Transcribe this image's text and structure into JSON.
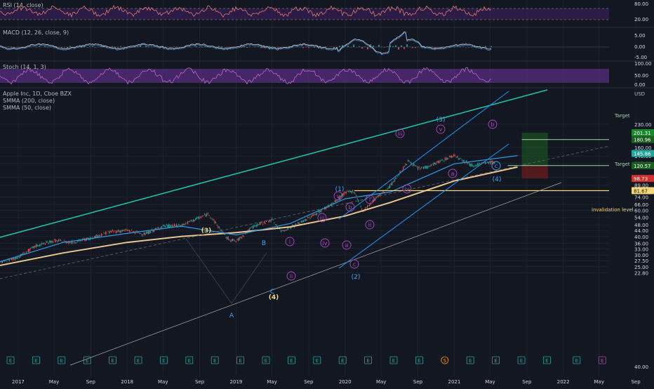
{
  "colors": {
    "bg": "#131722",
    "grid": "#1e222d",
    "text": "#b2b5be",
    "axis": "#d1d4dc",
    "up": "#26a69a",
    "down": "#ef5350",
    "smma200": "#e8c58f",
    "smma50": "#2f9be0",
    "teal_line": "#1fbfa1",
    "channel": "#2196f3",
    "wave": "#ab47bc",
    "box_up": "#1b5e20",
    "box_down": "#7f1d1d",
    "invalidation": "#f5d77a",
    "target_line": "#a5d6a7",
    "rsi": "#e57373",
    "stoch_k": "#ba68c8",
    "stoch_d": "#e57373",
    "stoch_band": "#5b2e84",
    "macd": "#d1d4dc",
    "signal": "#42a5f5"
  },
  "panes": {
    "rsi": {
      "label": "RSI (14, close)",
      "ticks": [
        "80.00",
        "20.00"
      ]
    },
    "macd": {
      "label": "MACD (12, 26, close, 9)",
      "ticks": [
        "5.00",
        "0.00",
        "-5.00"
      ]
    },
    "stoch": {
      "label": "Stoch (14, 1, 3)",
      "ticks": [
        "100.00",
        "50.00",
        "0.00"
      ]
    }
  },
  "main": {
    "title": "Apple Inc, 1D, Cboe BZX",
    "legend": [
      "SMMA (200, close)",
      "SMMA (50, close)"
    ],
    "currency": "USD"
  },
  "price_axis": [
    "230.00",
    "160.00",
    "140.00",
    "125.00",
    "101.00",
    "89.00",
    "74.00",
    "66.00",
    "60.00",
    "54.00",
    "48.00",
    "44.00",
    "40.00",
    "36.00",
    "33.00",
    "30.00",
    "27.50",
    "25.00",
    "22.80",
    "40.00"
  ],
  "price_badges": [
    {
      "value": "201.31",
      "color": "#1b8a2c"
    },
    {
      "value": "180.96",
      "color": "#1b5e20"
    },
    {
      "value": "145.86",
      "color": "#26a69a"
    },
    {
      "value": "120.82",
      "color": "#1b5e20"
    },
    {
      "value": "120.57",
      "color": "#1b5e20"
    },
    {
      "value": "98.73",
      "color": "#d32f2f"
    },
    {
      "value": "81.67",
      "color": "#f5d77a"
    }
  ],
  "time_axis": [
    "2017",
    "May",
    "Sep",
    "2018",
    "May",
    "Sep",
    "2019",
    "May",
    "Sep",
    "2020",
    "May",
    "Sep",
    "2021",
    "May",
    "Sep",
    "2022",
    "May",
    "Sep"
  ],
  "annotations": {
    "target_1": "Target",
    "target_2": "Target",
    "invalidation": "invalidation level"
  },
  "wave_labels": [
    {
      "text": "(3)",
      "color": "#f5d77a"
    },
    {
      "text": "B",
      "color": "#42a5f5"
    },
    {
      "text": "A",
      "color": "#42a5f5"
    },
    {
      "text": "C",
      "color": "#42a5f5"
    },
    {
      "text": "(4)",
      "color": "#f5d77a"
    },
    {
      "text": "(1)",
      "color": "#42a5f5"
    },
    {
      "text": "(2)",
      "color": "#42a5f5"
    },
    {
      "text": "(3)",
      "color": "#42a5f5"
    },
    {
      "text": "(4)",
      "color": "#42a5f5"
    },
    {
      "text": "i",
      "color": "#ab47bc"
    },
    {
      "text": "ii",
      "color": "#ab47bc"
    },
    {
      "text": "iii",
      "color": "#ab47bc"
    },
    {
      "text": "iv",
      "color": "#ab47bc"
    },
    {
      "text": "v",
      "color": "#ab47bc"
    },
    {
      "text": "a",
      "color": "#ab47bc"
    },
    {
      "text": "b",
      "color": "#ab47bc"
    },
    {
      "text": "c",
      "color": "#ab47bc"
    },
    {
      "text": "i",
      "color": "#ab47bc"
    },
    {
      "text": "ii",
      "color": "#ab47bc"
    },
    {
      "text": "iii",
      "color": "#ab47bc"
    },
    {
      "text": "iv",
      "color": "#ab47bc"
    },
    {
      "text": "v",
      "color": "#ab47bc"
    },
    {
      "text": "a",
      "color": "#ab47bc"
    },
    {
      "text": "b",
      "color": "#ab47bc"
    },
    {
      "text": "c",
      "color": "#42a5f5"
    }
  ],
  "events": [
    "E",
    "E",
    "E",
    "E",
    "E",
    "E",
    "E",
    "E",
    "E",
    "E",
    "E",
    "E",
    "E",
    "E",
    "E",
    "E",
    "E",
    "S",
    "E",
    "E",
    "E",
    "E",
    "E",
    "E"
  ],
  "chart_data": {
    "type": "line",
    "title": "Apple Inc, 1D, Cboe BZX",
    "y_scale": "log",
    "ylim": [
      22.8,
      230
    ],
    "x_range": [
      "2016-11",
      "2022-11"
    ],
    "series": [
      {
        "name": "AAPL",
        "x": [
          "2016-11",
          "2017-01",
          "2017-03",
          "2017-05",
          "2017-07",
          "2017-09",
          "2017-11",
          "2018-01",
          "2018-03",
          "2018-05",
          "2018-07",
          "2018-10",
          "2018-12",
          "2019-01",
          "2019-03",
          "2019-05",
          "2019-06",
          "2019-08",
          "2019-10",
          "2019-12",
          "2020-01",
          "2020-02",
          "2020-03",
          "2020-04",
          "2020-06",
          "2020-08",
          "2020-09",
          "2020-10",
          "2020-12",
          "2021-01",
          "2021-03",
          "2021-05",
          "2021-06",
          "2021-07",
          "2021-08"
        ],
        "values": [
          26.5,
          29,
          34.5,
          37.5,
          36.5,
          39,
          43,
          44,
          41.5,
          47,
          47.5,
          57,
          39,
          37,
          47,
          52,
          43.5,
          49,
          58,
          69,
          79,
          81,
          59,
          69,
          88,
          130,
          115,
          118,
          133,
          142,
          121,
          127,
          126,
          146,
          149
        ]
      },
      {
        "name": "SMMA (200, close)",
        "x": [
          "2016-11",
          "2017-06",
          "2018-01",
          "2018-07",
          "2019-01",
          "2019-07",
          "2020-01",
          "2020-06",
          "2021-01",
          "2021-08"
        ],
        "values": [
          25.5,
          31,
          36.5,
          40,
          42.5,
          46.5,
          55,
          68,
          95,
          118
        ]
      },
      {
        "name": "SMMA (50, close)",
        "x": [
          "2016-11",
          "2017-06",
          "2018-01",
          "2018-07",
          "2019-01",
          "2019-07",
          "2020-01",
          "2020-06",
          "2021-01",
          "2021-08"
        ],
        "values": [
          27,
          36.5,
          42,
          47,
          41,
          49,
          72,
          80,
          124,
          141
        ]
      }
    ],
    "levels": {
      "target_1": 180.96,
      "target_2": 120.82,
      "entry": 120.57,
      "stop": 98.73,
      "top": 201.31,
      "invalidation": 81.67,
      "last": 145.86
    },
    "position_box": {
      "x_start": "2021-08",
      "x_end": "2021-11",
      "top": 201.31,
      "entry": 120.57,
      "stop": 98.73
    },
    "rsi_levels": [
      80,
      20
    ],
    "stoch_levels": [
      100,
      50,
      0
    ]
  }
}
